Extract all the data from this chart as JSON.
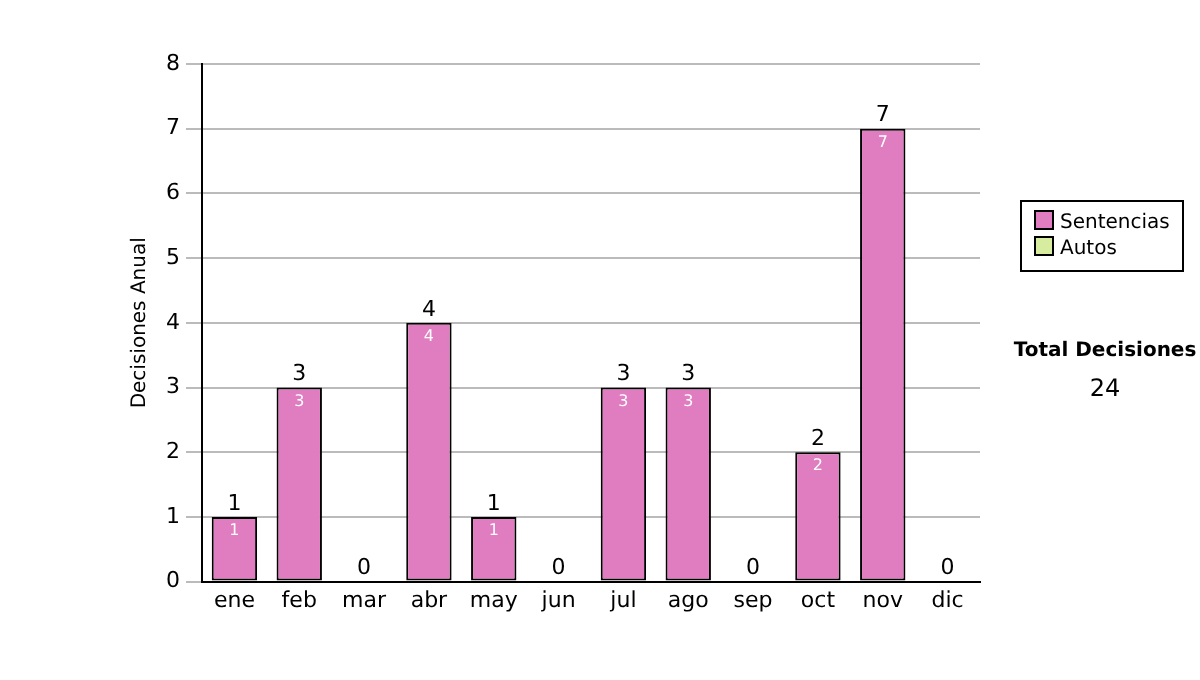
{
  "chart_data": {
    "type": "bar",
    "stacked": true,
    "ylabel": "Decisiones Anual",
    "categories": [
      "ene",
      "feb",
      "mar",
      "abr",
      "may",
      "jun",
      "jul",
      "ago",
      "sep",
      "oct",
      "nov",
      "dic"
    ],
    "series": [
      {
        "name": "Sentencias",
        "color": "#e07cc0",
        "values": [
          1,
          3,
          0,
          4,
          1,
          0,
          3,
          3,
          0,
          2,
          7,
          0
        ],
        "value_labels": [
          "1",
          "3",
          null,
          "4",
          "1",
          null,
          "3",
          "3",
          null,
          "2",
          "7",
          null
        ]
      },
      {
        "name": "Autos",
        "color": "#d8eca0",
        "values": [
          0,
          0,
          0,
          0,
          0,
          0,
          0,
          0,
          0,
          0,
          0,
          0
        ]
      }
    ],
    "totals": [
      "1",
      "3",
      "0",
      "4",
      "1",
      "0",
      "3",
      "3",
      "0",
      "2",
      "7",
      "0"
    ],
    "ylim": [
      0,
      8
    ],
    "yticks": [
      0,
      1,
      2,
      3,
      4,
      5,
      6,
      7,
      8
    ],
    "grid": "y",
    "legend": "right",
    "annotations": [
      "Total Decisiones",
      "24"
    ]
  }
}
